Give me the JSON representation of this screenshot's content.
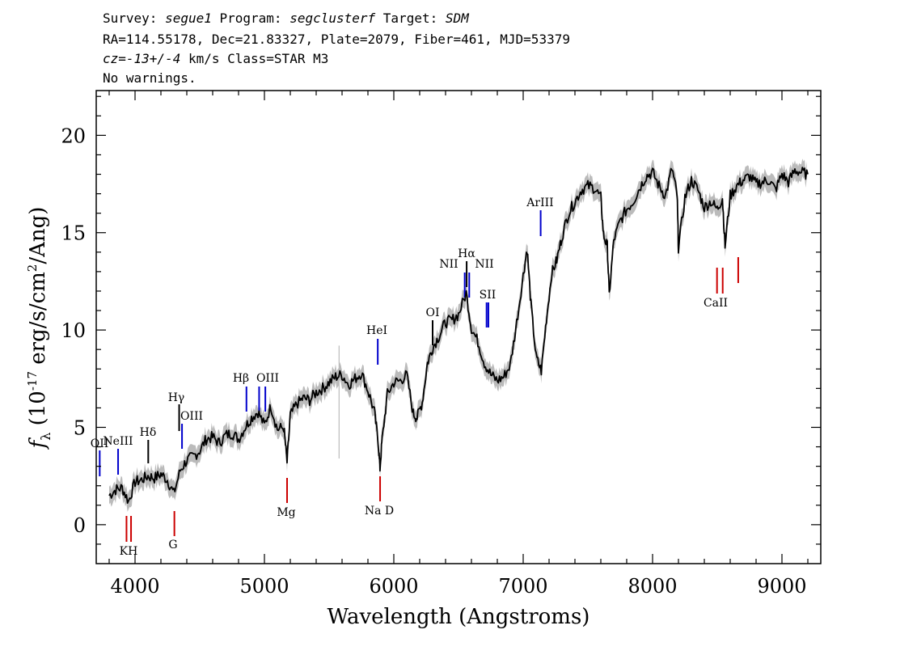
{
  "header": {
    "line1": {
      "survey_label": "Survey: ",
      "survey": "segue1",
      "program_label": " Program: ",
      "program": "segclusterf",
      "target_label": " Target: ",
      "target": "SDM"
    },
    "line2": "RA=114.55178, Dec=21.83327, Plate=2079, Fiber=461, MJD=53379",
    "line3": {
      "cz": "cz=-13+/-4",
      "unit_class": " km/s Class=STAR M3"
    },
    "line4": "No warnings."
  },
  "chart_data": {
    "type": "line",
    "xlabel": "Wavelength (Angstroms)",
    "ylabel": "f_λ (10^-17 erg/s/cm^2/Ang)",
    "xlim": [
      3700,
      9300
    ],
    "ylim": [
      -2,
      22.3
    ],
    "xticks": [
      4000,
      5000,
      6000,
      7000,
      8000,
      9000
    ],
    "yticks": [
      0,
      5,
      10,
      15,
      20
    ],
    "grid": false,
    "series": [
      {
        "color": "#000000",
        "error_band_color": "#bbbbbb",
        "x": [
          3800,
          3850,
          3900,
          3950,
          4000,
          4050,
          4100,
          4150,
          4200,
          4250,
          4300,
          4350,
          4400,
          4450,
          4500,
          4550,
          4600,
          4650,
          4700,
          4750,
          4800,
          4850,
          4900,
          4950,
          5000,
          5050,
          5100,
          5150,
          5175,
          5200,
          5250,
          5300,
          5350,
          5400,
          5450,
          5500,
          5550,
          5600,
          5650,
          5700,
          5750,
          5800,
          5850,
          5880,
          5893,
          5910,
          5950,
          6000,
          6050,
          6100,
          6150,
          6180,
          6220,
          6260,
          6300,
          6350,
          6400,
          6450,
          6500,
          6560,
          6600,
          6650,
          6700,
          6750,
          6800,
          6850,
          6900,
          6950,
          7000,
          7030,
          7060,
          7100,
          7140,
          7180,
          7220,
          7260,
          7300,
          7350,
          7400,
          7450,
          7500,
          7550,
          7600,
          7620,
          7650,
          7665,
          7700,
          7750,
          7800,
          7850,
          7900,
          7950,
          8000,
          8050,
          8100,
          8150,
          8190,
          8200,
          8250,
          8300,
          8350,
          8400,
          8450,
          8500,
          8540,
          8560,
          8600,
          8650,
          8700,
          8750,
          8800,
          8850,
          8900,
          8950,
          9000,
          9050,
          9100,
          9150,
          9200
        ],
        "y": [
          1.5,
          1.8,
          1.9,
          1.2,
          2.2,
          2.3,
          2.5,
          2.4,
          2.6,
          2.3,
          1.6,
          2.8,
          3.3,
          3.5,
          3.8,
          4.4,
          4.5,
          4.2,
          4.6,
          4.7,
          4.4,
          5.0,
          5.5,
          5.8,
          5.1,
          6.1,
          4.9,
          5.0,
          3.2,
          5.6,
          6.2,
          6.5,
          6.4,
          6.8,
          7.0,
          7.3,
          7.6,
          7.7,
          7.2,
          7.5,
          7.8,
          6.9,
          5.8,
          4.2,
          2.9,
          4.4,
          6.7,
          7.3,
          7.4,
          7.7,
          5.7,
          5.5,
          6.3,
          8.3,
          9.1,
          9.7,
          10.4,
          10.5,
          10.8,
          11.9,
          10.1,
          9.4,
          8.3,
          7.7,
          7.4,
          7.6,
          8.2,
          10.4,
          12.8,
          14.2,
          11.3,
          8.6,
          7.9,
          10.6,
          12.9,
          13.6,
          14.8,
          16.0,
          16.6,
          17.2,
          17.4,
          17.3,
          16.8,
          14.9,
          14.3,
          11.8,
          14.6,
          15.6,
          16.2,
          16.6,
          17.3,
          17.9,
          18.1,
          17.4,
          16.9,
          18.3,
          16.9,
          14.2,
          16.8,
          17.7,
          17.2,
          16.3,
          16.6,
          16.2,
          16.8,
          14.3,
          16.9,
          17.4,
          17.7,
          17.9,
          17.5,
          17.6,
          17.7,
          17.2,
          18.0,
          17.6,
          18.2,
          18.1,
          18.0
        ]
      }
    ],
    "lines_blue": [
      {
        "label": "OII",
        "x": 3727
      },
      {
        "label": "NeIII",
        "x": 3869
      },
      {
        "label": "Hδ",
        "x": 4102
      },
      {
        "label": "Hγ",
        "x": 4341
      },
      {
        "label": "OIII",
        "x": 4363
      },
      {
        "label": "Hβ",
        "x": 4861
      },
      {
        "label": "OIII",
        "x": 4959
      },
      {
        "label": "OIII",
        "x": 5007
      },
      {
        "label": "HeI",
        "x": 5876
      },
      {
        "label": "OI",
        "x": 6300
      },
      {
        "label": "NII",
        "x": 6548
      },
      {
        "label": "Hα",
        "x": 6563
      },
      {
        "label": "NII",
        "x": 6583
      },
      {
        "label": "SII",
        "x": 6717
      },
      {
        "label": "SII",
        "x": 6731
      },
      {
        "label": "ArIII",
        "x": 7135
      }
    ],
    "lines_red": [
      {
        "label": "K",
        "x": 3934
      },
      {
        "label": "H",
        "x": 3969
      },
      {
        "label": "G",
        "x": 4304
      },
      {
        "label": "Mg",
        "x": 5175
      },
      {
        "label": "Na D",
        "x": 5894
      },
      {
        "label": "CaII",
        "x": 8498
      },
      {
        "label": "CaII",
        "x": 8542
      },
      {
        "label": "CaII",
        "x": 8662
      }
    ],
    "line_labels": {
      "OII": "OII",
      "NeIII": "NeIII",
      "Hdelta": "Hδ",
      "Hgamma": "Hγ",
      "OIII_a": "OIII",
      "Hbeta": "Hβ",
      "OIII_b": "OIII",
      "HeI": "HeI",
      "OI": "OI",
      "NII_a": "NII",
      "Halpha": "Hα",
      "NII_b": "NII",
      "SII": "SII",
      "ArIII": "ArIII",
      "KH": "KH",
      "G": "G",
      "Mg": "Mg",
      "NaD": "Na D",
      "CaII": "CaII"
    }
  },
  "colors": {
    "emission": "#0000cc",
    "absorption": "#cc0000",
    "galaxy_line": "#000000"
  }
}
